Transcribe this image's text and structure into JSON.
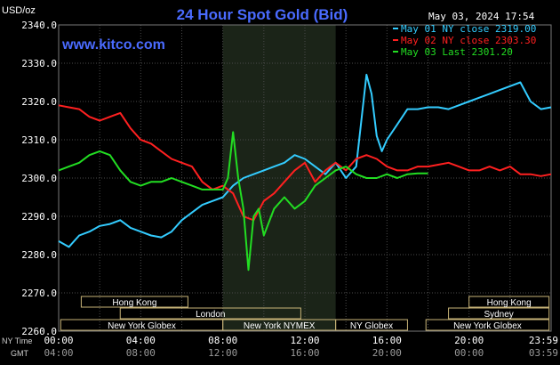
{
  "header": {
    "title": "24 Hour Spot Gold (Bid)",
    "unit": "USD/oz",
    "timestamp": "May 03, 2024 17:54",
    "website": "www.kitco.com"
  },
  "legend": [
    {
      "text": "May 01 NY close 2319.00",
      "color": "#33ccff"
    },
    {
      "text": "May 02 NY close 2303.30",
      "color": "#ff2020"
    },
    {
      "text": "May 03 Last 2301.20",
      "color": "#22dd22"
    }
  ],
  "axis": {
    "y_ticks": [
      "2340.0",
      "2330.0",
      "2320.0",
      "2310.0",
      "2300.0",
      "2290.0",
      "2280.0",
      "2270.0",
      "2260.0"
    ],
    "x_row1_label": "NY Time",
    "x_row1_ticks": [
      "00:00",
      "04:00",
      "08:00",
      "12:00",
      "16:00",
      "20:00",
      "23:59"
    ],
    "x_row2_label": "GMT",
    "x_row2_ticks": [
      "04:00",
      "08:00",
      "12:00",
      "16:00",
      "20:00",
      "00:00",
      "03:59"
    ]
  },
  "sessions": {
    "row1": [
      "Hong Kong",
      "Hong Kong"
    ],
    "row2": [
      "London",
      "Sydney"
    ],
    "row3": [
      "New York Globex",
      "New York NYMEX",
      "NY Globex",
      "New York Globex"
    ]
  },
  "chart_data": {
    "type": "line",
    "title": "24 Hour Spot Gold (Bid)",
    "ylabel": "USD/oz",
    "x_unit": "hours (NY time)",
    "xlim": [
      0,
      24
    ],
    "ylim": [
      2260,
      2340
    ],
    "grid": true,
    "legend_position": "top-right",
    "shaded_region": [
      8.0,
      13.5
    ],
    "series": [
      {
        "name": "May 01 NY close 2319.00",
        "color": "#33ccff",
        "x": [
          0,
          0.5,
          1,
          1.5,
          2,
          2.5,
          3,
          3.5,
          4,
          4.5,
          5,
          5.5,
          6,
          6.5,
          7,
          7.5,
          8,
          8.5,
          9,
          9.5,
          10,
          10.5,
          11,
          11.5,
          12,
          12.5,
          13,
          13.5,
          14,
          14.5,
          14.75,
          15,
          15.25,
          15.5,
          15.75,
          16,
          16.5,
          17,
          17.5,
          18,
          18.5,
          19,
          19.5,
          20,
          20.5,
          21,
          21.5,
          22,
          22.5,
          23,
          23.5,
          24
        ],
        "y": [
          2283.5,
          2282,
          2285,
          2286,
          2287.5,
          2288,
          2289,
          2287,
          2286,
          2285,
          2284.5,
          2286,
          2289,
          2291,
          2293,
          2294,
          2295,
          2298,
          2300,
          2301,
          2302,
          2303,
          2304,
          2306,
          2305,
          2303,
          2301,
          2304,
          2300,
          2303,
          2315,
          2327,
          2322,
          2311,
          2307,
          2310,
          2314,
          2318,
          2318,
          2318.5,
          2318.5,
          2318,
          2319,
          2320,
          2321,
          2322,
          2323,
          2324,
          2325,
          2320,
          2318,
          2318.5
        ]
      },
      {
        "name": "May 02 NY close 2303.30",
        "color": "#ff2020",
        "x": [
          0,
          0.5,
          1,
          1.5,
          2,
          2.5,
          3,
          3.5,
          4,
          4.5,
          5,
          5.5,
          6,
          6.5,
          7,
          7.5,
          8,
          8.5,
          9,
          9.5,
          10,
          10.5,
          11,
          11.5,
          12,
          12.5,
          13,
          13.5,
          14,
          14.5,
          15,
          15.5,
          16,
          16.5,
          17,
          17.5,
          18,
          18.5,
          19,
          19.5,
          20,
          20.5,
          21,
          21.5,
          22,
          22.5,
          23,
          23.5,
          24
        ],
        "y": [
          2319,
          2318.5,
          2318,
          2316,
          2315,
          2316,
          2317,
          2313,
          2310,
          2309,
          2307,
          2305,
          2304,
          2303,
          2299,
          2297,
          2298,
          2296,
          2290,
          2289,
          2294,
          2296,
          2299,
          2302,
          2304,
          2299,
          2302,
          2304,
          2302,
          2305,
          2306,
          2305,
          2303,
          2302,
          2302,
          2303,
          2303,
          2303.5,
          2304,
          2303,
          2302,
          2302,
          2303,
          2302,
          2303,
          2301,
          2301,
          2300.5,
          2301
        ]
      },
      {
        "name": "May 03 Last 2301.20",
        "color": "#22dd22",
        "x": [
          0,
          0.5,
          1,
          1.5,
          2,
          2.5,
          3,
          3.5,
          4,
          4.5,
          5,
          5.5,
          6,
          6.5,
          7,
          7.5,
          8,
          8.25,
          8.5,
          8.75,
          9,
          9.25,
          9.5,
          9.75,
          10,
          10.5,
          11,
          11.5,
          12,
          12.5,
          13,
          13.5,
          14,
          14.5,
          15,
          15.5,
          16,
          16.5,
          17,
          17.5,
          18
        ],
        "y": [
          2302,
          2303,
          2304,
          2306,
          2307,
          2306,
          2302,
          2299,
          2298,
          2299,
          2299,
          2300,
          2299,
          2298,
          2297,
          2297,
          2297,
          2300,
          2312,
          2300,
          2292,
          2276,
          2290,
          2292,
          2285,
          2292,
          2295,
          2292,
          2294,
          2298,
          2300,
          2302,
          2303,
          2301,
          2300,
          2300,
          2301,
          2300,
          2301,
          2301.2,
          2301.2
        ]
      }
    ]
  }
}
